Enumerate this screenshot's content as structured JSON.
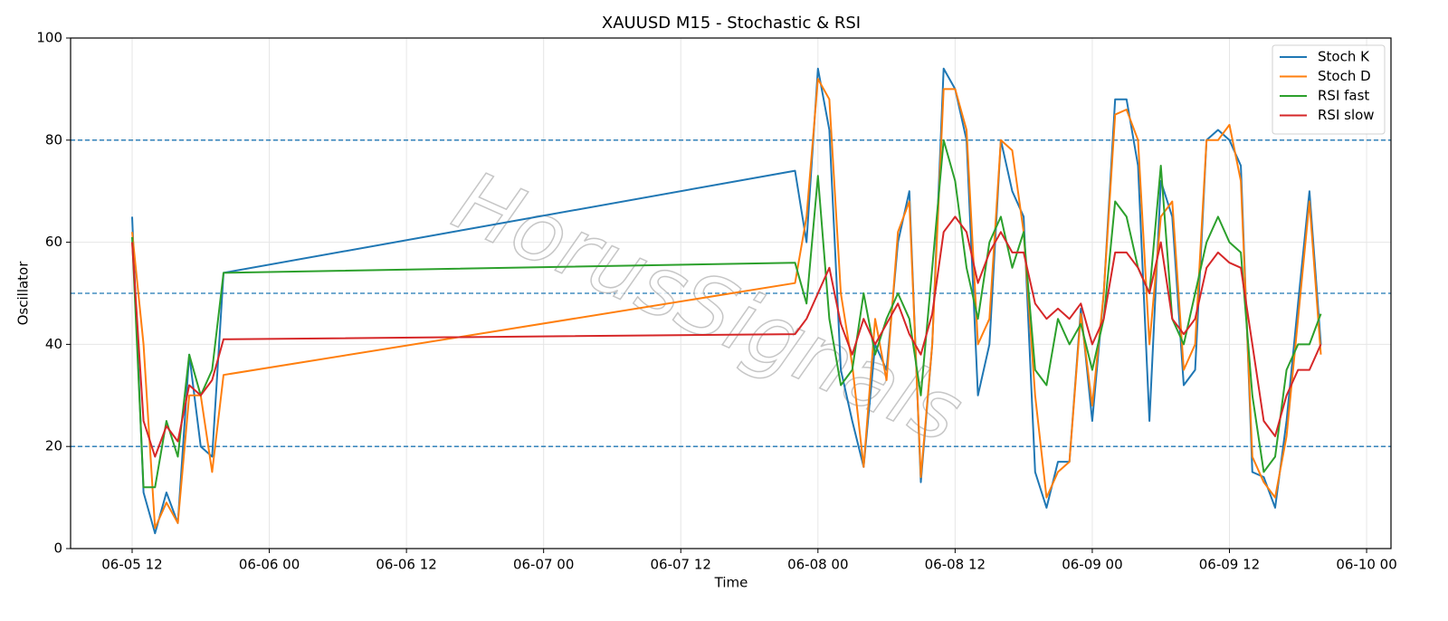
{
  "chart_data": {
    "type": "line",
    "title": "XAUUSD M15 - Stochastic & RSI",
    "xlabel": "Time",
    "ylabel": "Oscillator",
    "watermark": "HorusSignals",
    "x": [
      "06-05 12:00",
      "06-05 13:00",
      "06-05 14:00",
      "06-05 15:00",
      "06-05 16:00",
      "06-05 17:00",
      "06-05 18:00",
      "06-05 19:00",
      "06-05 20:00",
      "06-07 22:00",
      "06-07 23:00",
      "06-08 00:00",
      "06-08 01:00",
      "06-08 02:00",
      "06-08 03:00",
      "06-08 04:00",
      "06-08 05:00",
      "06-08 06:00",
      "06-08 07:00",
      "06-08 08:00",
      "06-08 09:00",
      "06-08 10:00",
      "06-08 11:00",
      "06-08 12:00",
      "06-08 13:00",
      "06-08 14:00",
      "06-08 15:00",
      "06-08 16:00",
      "06-08 17:00",
      "06-08 18:00",
      "06-08 19:00",
      "06-08 20:00",
      "06-08 21:00",
      "06-08 22:00",
      "06-08 23:00",
      "06-09 00:00",
      "06-09 01:00",
      "06-09 02:00",
      "06-09 03:00",
      "06-09 04:00",
      "06-09 05:00",
      "06-09 06:00",
      "06-09 07:00",
      "06-09 08:00",
      "06-09 09:00",
      "06-09 10:00",
      "06-09 11:00",
      "06-09 12:00",
      "06-09 13:00",
      "06-09 14:00",
      "06-09 15:00",
      "06-09 16:00",
      "06-09 17:00",
      "06-09 18:00",
      "06-09 19:00",
      "06-09 20:00"
    ],
    "series": [
      {
        "name": "Stoch K",
        "color": "#1f77b4",
        "values": [
          65,
          11,
          3,
          11,
          5,
          38,
          20,
          18,
          54,
          74,
          60,
          94,
          82,
          35,
          25,
          16,
          40,
          35,
          60,
          70,
          13,
          40,
          94,
          90,
          80,
          30,
          40,
          80,
          70,
          65,
          15,
          8,
          17,
          17,
          47,
          25,
          50,
          88,
          88,
          75,
          25,
          72,
          65,
          32,
          35,
          80,
          82,
          80,
          75,
          15,
          14,
          8,
          25,
          48,
          70,
          40
        ]
      },
      {
        "name": "Stoch D",
        "color": "#ff7f0e",
        "values": [
          62,
          40,
          4,
          9,
          5,
          30,
          30,
          15,
          34,
          52,
          65,
          92,
          88,
          50,
          36,
          16,
          45,
          33,
          62,
          68,
          14,
          40,
          90,
          90,
          82,
          40,
          45,
          80,
          78,
          62,
          30,
          10,
          15,
          17,
          46,
          28,
          50,
          85,
          86,
          80,
          40,
          65,
          68,
          35,
          40,
          80,
          80,
          83,
          72,
          18,
          13,
          10,
          22,
          45,
          68,
          38
        ]
      },
      {
        "name": "RSI fast",
        "color": "#2ca02c",
        "values": [
          61,
          12,
          12,
          25,
          18,
          38,
          30,
          35,
          54,
          56,
          48,
          73,
          45,
          32,
          35,
          50,
          38,
          45,
          50,
          45,
          30,
          55,
          80,
          72,
          55,
          45,
          60,
          65,
          55,
          62,
          35,
          32,
          45,
          40,
          44,
          35,
          45,
          68,
          65,
          55,
          50,
          75,
          45,
          40,
          50,
          60,
          65,
          60,
          58,
          30,
          15,
          18,
          35,
          40,
          40,
          46
        ]
      },
      {
        "name": "RSI slow",
        "color": "#d62728",
        "values": [
          60,
          25,
          18,
          24,
          21,
          32,
          30,
          33,
          41,
          42,
          45,
          50,
          55,
          44,
          38,
          45,
          40,
          44,
          48,
          42,
          38,
          46,
          62,
          65,
          62,
          52,
          58,
          62,
          58,
          58,
          48,
          45,
          47,
          45,
          48,
          40,
          45,
          58,
          58,
          55,
          50,
          60,
          45,
          42,
          45,
          55,
          58,
          56,
          55,
          40,
          25,
          22,
          30,
          35,
          35,
          40
        ]
      }
    ],
    "hlines": [
      20,
      50,
      80
    ],
    "hline_color": "#1f77b4",
    "xlim": [
      "06-05 06:37",
      "06-10 02:08"
    ],
    "xticks": [
      "06-05 12",
      "06-06 00",
      "06-06 12",
      "06-07 00",
      "06-07 12",
      "06-08 00",
      "06-08 12",
      "06-09 00",
      "06-09 12",
      "06-10 00"
    ],
    "ylim": [
      0,
      100
    ],
    "yticks": [
      0,
      20,
      40,
      60,
      80,
      100
    ],
    "grid": true,
    "legend": "upper right"
  }
}
